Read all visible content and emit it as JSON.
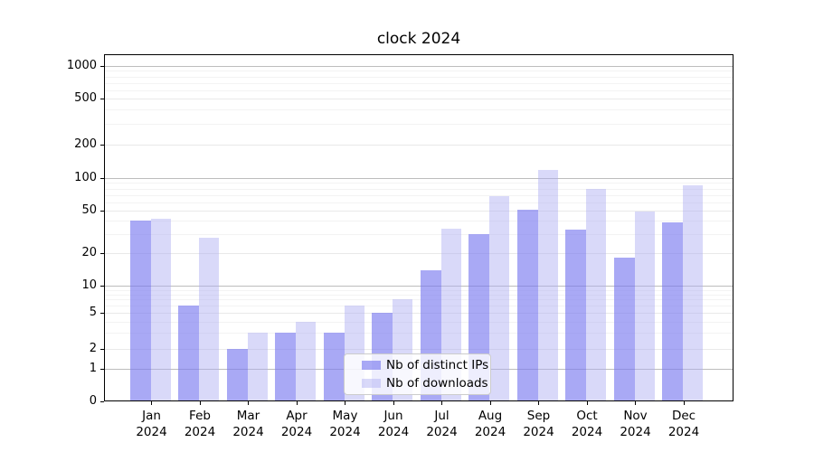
{
  "title": "clock 2024",
  "chart_data": {
    "type": "bar",
    "title": "clock 2024",
    "categories": [
      "Jan 2024",
      "Feb 2024",
      "Mar 2024",
      "Apr 2024",
      "May 2024",
      "Jun 2024",
      "Jul 2024",
      "Aug 2024",
      "Sep 2024",
      "Oct 2024",
      "Nov 2024",
      "Dec 2024"
    ],
    "series": [
      {
        "name": "Nb of distinct IPs",
        "fill": "rgba(120,120,240,0.64)",
        "values": [
          40,
          6,
          2,
          3,
          3,
          5,
          14,
          30,
          51,
          33,
          18,
          39
        ]
      },
      {
        "name": "Nb of downloads",
        "fill": "rgba(170,170,242,0.45)",
        "values": [
          42,
          28,
          3,
          4,
          6,
          7,
          34,
          68,
          118,
          80,
          49,
          85
        ]
      }
    ],
    "xlabel": "",
    "ylabel": "",
    "yticks": [
      0,
      1,
      2,
      5,
      10,
      20,
      50,
      100,
      200,
      500,
      1000
    ],
    "ylim": [
      0,
      1400
    ],
    "yscale": "symlog",
    "grid": "horizontal major + minor",
    "legend_position": "inside bottom-center",
    "colors": {
      "distinct_ips_apparent": "#a8a8f5",
      "downloads_apparent": "#d9d9fa",
      "major_gridline": "#bdbdbd",
      "light_gridline": "#e9e9e9",
      "minor_gridline": "#f3f3f3"
    }
  }
}
